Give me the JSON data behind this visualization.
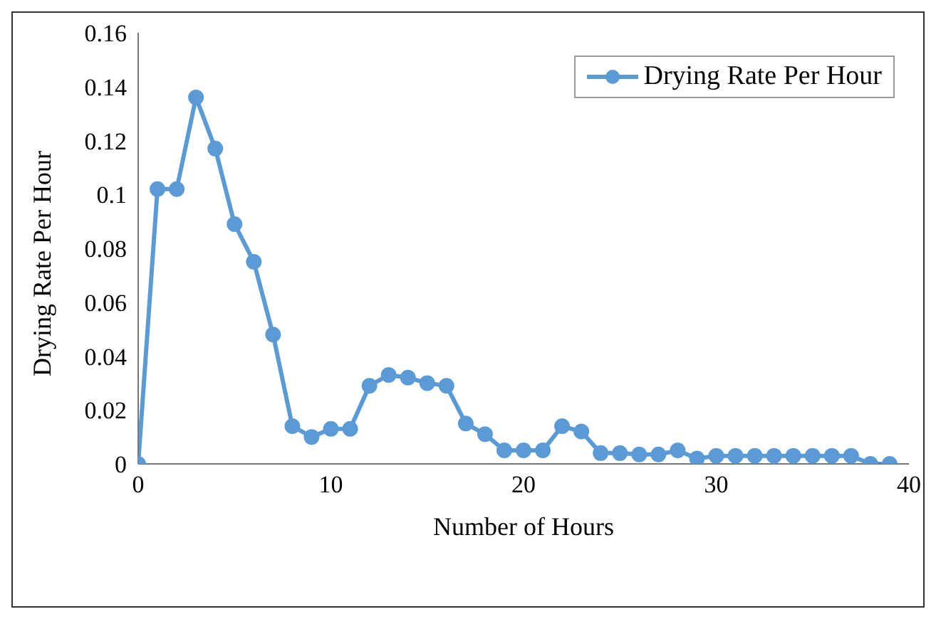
{
  "chart_data": {
    "type": "line",
    "xlabel": "Number of Hours",
    "ylabel": "Drying Rate Per Hour",
    "x": [
      0,
      1,
      2,
      3,
      4,
      5,
      6,
      7,
      8,
      9,
      10,
      11,
      12,
      13,
      14,
      15,
      16,
      17,
      18,
      19,
      20,
      21,
      22,
      23,
      24,
      25,
      26,
      27,
      28,
      29,
      30,
      31,
      32,
      33,
      34,
      35,
      36,
      37,
      38,
      39
    ],
    "series": [
      {
        "name": "Drying Rate Per Hour",
        "color": "#5b9bd5",
        "values": [
          0,
          0.102,
          0.102,
          0.136,
          0.117,
          0.089,
          0.075,
          0.048,
          0.014,
          0.01,
          0.013,
          0.013,
          0.029,
          0.033,
          0.032,
          0.03,
          0.029,
          0.015,
          0.011,
          0.005,
          0.005,
          0.005,
          0.014,
          0.012,
          0.004,
          0.004,
          0.0035,
          0.0035,
          0.005,
          0.002,
          0.003,
          0.003,
          0.003,
          0.003,
          0.003,
          0.003,
          0.003,
          0.003,
          0,
          0
        ]
      }
    ],
    "xlim": [
      0,
      40
    ],
    "xticks": [
      0,
      10,
      20,
      30,
      40
    ],
    "ylim": [
      0,
      0.16
    ],
    "yticks": [
      0,
      0.02,
      0.04,
      0.06,
      0.08,
      0.1,
      0.12,
      0.14,
      0.16
    ],
    "grid": false,
    "legend": "top right",
    "marker": "circle",
    "line_style": "solid"
  }
}
